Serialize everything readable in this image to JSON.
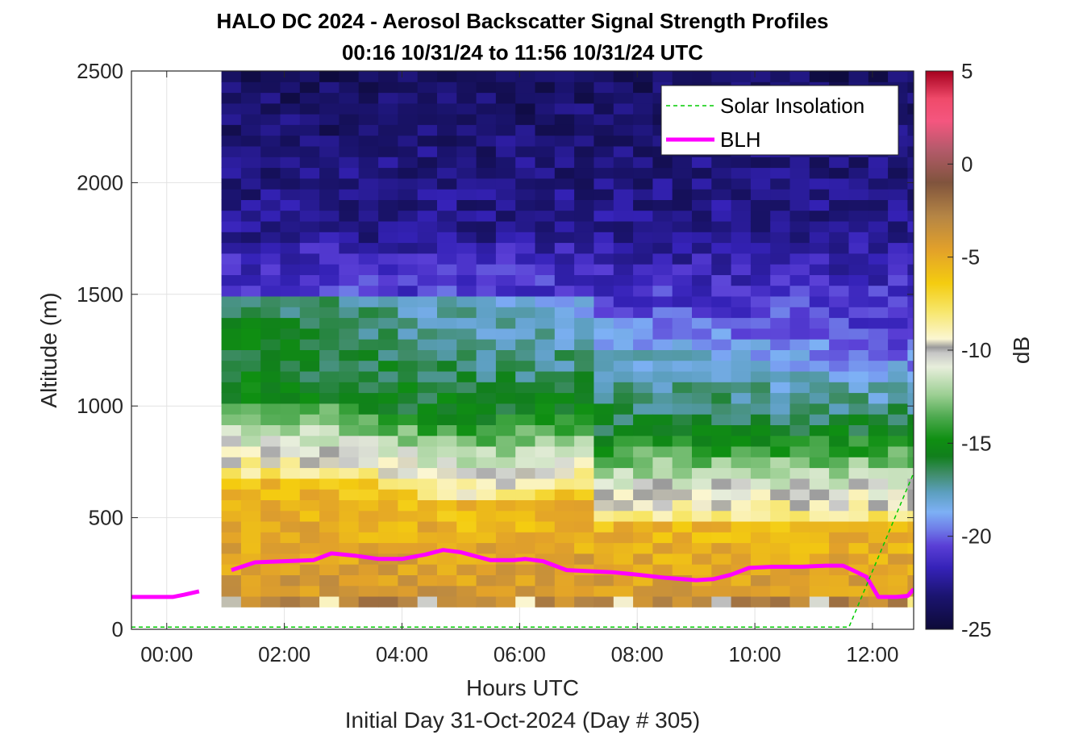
{
  "chart_data": {
    "type": "heatmap",
    "title": "HALO DC 2024 - Aerosol Backscatter Signal Strength Profiles",
    "subtitle": "00:16 10/31/24 to 11:56 10/31/24  UTC",
    "xlabel": "Hours UTC",
    "xlabel2": "Initial Day 31-Oct-2024 (Day # 305)",
    "ylabel": "Altitude (m)",
    "colorbar_label": "dB",
    "xlim_hours": [
      -0.6,
      12.7
    ],
    "ylim": [
      0,
      2500
    ],
    "clim": [
      -25,
      5
    ],
    "x_ticks": [
      0,
      2,
      4,
      6,
      8,
      10,
      12
    ],
    "x_tick_labels": [
      "00:00",
      "02:00",
      "04:00",
      "06:00",
      "08:00",
      "10:00",
      "12:00"
    ],
    "y_ticks": [
      0,
      500,
      1000,
      1500,
      2000,
      2500
    ],
    "y_tick_labels": [
      "0",
      "500",
      "1000",
      "1500",
      "2000",
      "2500"
    ],
    "cbar_ticks": [
      5,
      0,
      -5,
      -10,
      -15,
      -20,
      -25
    ],
    "cbar_tick_labels": [
      "5",
      "0",
      "-5",
      "-10",
      "-15",
      "-20",
      "-25"
    ],
    "grid": true,
    "legend_location": "top-right",
    "legend": [
      {
        "name": "Solar Insolation",
        "style": "dashed",
        "color": "#00cc00"
      },
      {
        "name": "BLH",
        "style": "solid",
        "color": "#ff00ff"
      }
    ],
    "heatmap": {
      "x_start_hours": 0.93,
      "x_step_hours": 0.3333,
      "y_start_m": 100,
      "y_step_m": 48,
      "layers": [
        {
          "from_m": 100,
          "to_m": 148,
          "value_db": -3.0
        },
        {
          "from_m": 148,
          "to_m": 600,
          "profile": "gradient -2 to -7"
        },
        {
          "from_m": 600,
          "to_m": 1000,
          "profile": "gradient -8 to -15"
        },
        {
          "from_m": 1000,
          "to_m": 1500,
          "profile": "gradient -15 to -20"
        },
        {
          "from_m": 1500,
          "to_m": 2500,
          "profile": "gradient -21 to -24"
        }
      ]
    },
    "series": [
      {
        "name": "BLH",
        "x_hours": [
          -0.6,
          0.1,
          0.3,
          0.55,
          0.8,
          1.1,
          1.5,
          2.0,
          2.5,
          2.8,
          3.2,
          3.6,
          4.0,
          4.4,
          4.7,
          5.0,
          5.5,
          5.9,
          6.1,
          6.4,
          6.8,
          7.2,
          7.6,
          8.0,
          8.5,
          9.0,
          9.3,
          9.6,
          9.9,
          10.3,
          10.8,
          11.2,
          11.5,
          11.7,
          11.9,
          12.1,
          12.4,
          12.6,
          12.7
        ],
        "y_m": [
          145,
          145,
          155,
          170,
          null,
          265,
          300,
          305,
          310,
          340,
          330,
          315,
          315,
          335,
          355,
          345,
          310,
          310,
          315,
          305,
          265,
          260,
          255,
          245,
          230,
          220,
          225,
          245,
          275,
          280,
          280,
          285,
          285,
          260,
          235,
          145,
          145,
          150,
          180
        ]
      },
      {
        "name": "Solar Insolation",
        "x_hours": [
          -0.6,
          11.6,
          12.7
        ],
        "y_m": [
          10,
          10,
          700
        ]
      }
    ]
  }
}
